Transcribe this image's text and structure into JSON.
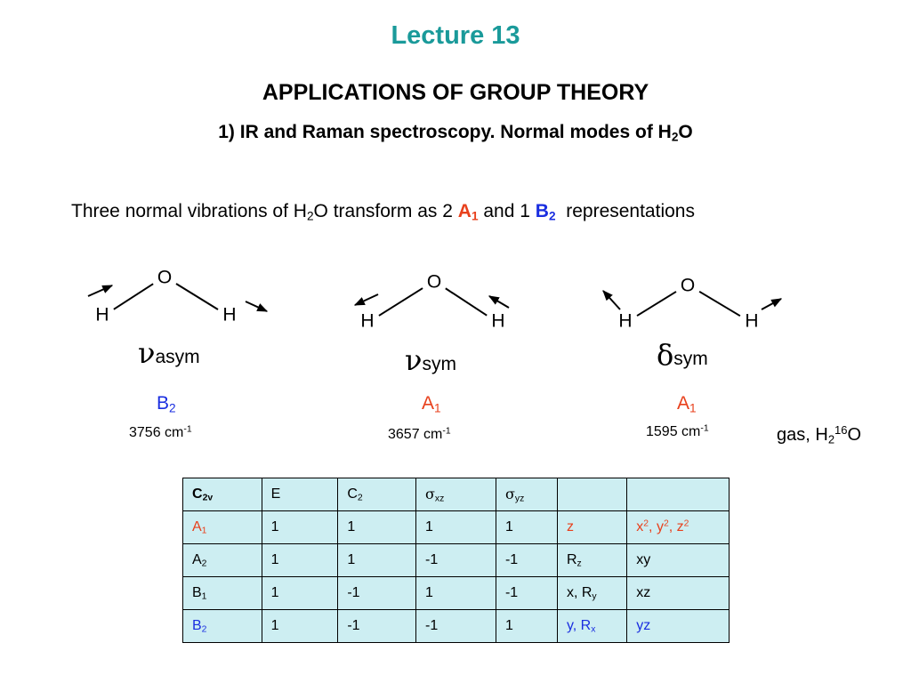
{
  "title": "Lecture 13",
  "heading": "APPLICATIONS OF GROUP THEORY",
  "subheading": [
    "1) IR and Raman spectroscopy. Normal modes of H",
    "2",
    "O"
  ],
  "intro": {
    "parts": [
      "Three normal vibrations of H",
      "2",
      "O transform as 2 "
    ],
    "irrep_a": [
      "A",
      "1"
    ],
    "middle": "and 1",
    "irrep_b": [
      "B",
      "2"
    ],
    "end": "representations"
  },
  "modes": [
    {
      "atoms": [
        "O",
        "H",
        "H"
      ],
      "symbol": [
        "ν",
        "asym"
      ],
      "irrep": [
        "B",
        "2"
      ],
      "frequency": [
        "3756 cm",
        "-1"
      ]
    },
    {
      "atoms": [
        "O",
        "H",
        "H"
      ],
      "symbol": [
        "ν",
        "sym"
      ],
      "irrep": [
        "A",
        "1"
      ],
      "frequency": [
        "3657 cm",
        "-1"
      ]
    },
    {
      "atoms": [
        "O",
        "H",
        "H"
      ],
      "symbol": [
        "δ",
        "sym"
      ],
      "irrep": [
        "A",
        "1"
      ],
      "frequency": [
        "1595 cm",
        "-1"
      ]
    }
  ],
  "note": [
    "gas, H",
    "2",
    "16",
    "O"
  ],
  "table": {
    "header": [
      [
        "C",
        "2v"
      ],
      [
        "E"
      ],
      [
        "C",
        "2"
      ],
      [
        "σ",
        "xz"
      ],
      [
        "σ",
        "yz"
      ]
    ],
    "rows": [
      {
        "color": "#e8401c",
        "cells": [
          [
            "A",
            "1"
          ],
          [
            "1"
          ],
          [
            "1"
          ],
          [
            "1"
          ],
          [
            "1"
          ],
          [
            "z"
          ],
          [
            "x",
            "2",
            ", y",
            "2",
            ", z",
            "2"
          ]
        ]
      },
      {
        "cells": [
          [
            "A",
            "2"
          ],
          [
            "1"
          ],
          [
            "1"
          ],
          [
            "-1"
          ],
          [
            "-1"
          ],
          [
            "R",
            "z"
          ],
          [
            "xy"
          ]
        ]
      },
      {
        "cells": [
          [
            "B",
            "1"
          ],
          [
            "1"
          ],
          [
            "-1"
          ],
          [
            "1"
          ],
          [
            "-1"
          ],
          [
            "x, R",
            "y"
          ],
          [
            "xz"
          ]
        ]
      },
      {
        "color": "#1a2ee0",
        "cells": [
          [
            "B",
            "2"
          ],
          [
            "1"
          ],
          [
            "-1"
          ],
          [
            "-1"
          ],
          [
            "1"
          ],
          [
            "y, R",
            "x"
          ],
          [
            "yz"
          ]
        ]
      }
    ]
  }
}
